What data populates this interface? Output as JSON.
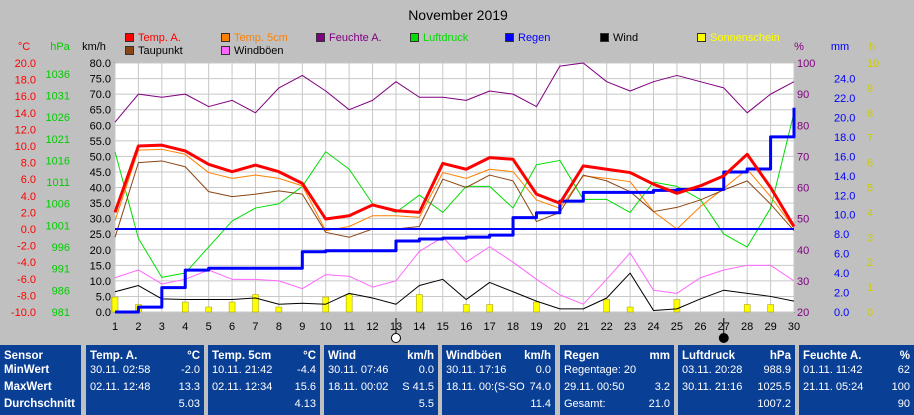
{
  "chart_data": {
    "type": "line",
    "title": "November 2019",
    "x": [
      1,
      2,
      3,
      4,
      5,
      6,
      7,
      8,
      9,
      10,
      11,
      12,
      13,
      14,
      15,
      16,
      17,
      18,
      19,
      20,
      21,
      22,
      23,
      24,
      25,
      26,
      27,
      28,
      29,
      30
    ],
    "axes": {
      "temp": {
        "unit": "°C",
        "range": [
          -10,
          20
        ],
        "ticks": [
          "20.0",
          "18.0",
          "16.0",
          "14.0",
          "12.0",
          "10.0",
          "8.0",
          "6.0",
          "4.0",
          "2.0",
          "0.0",
          "-2.0",
          "-4.0",
          "-6.0",
          "-8.0",
          "-10.0"
        ],
        "color": "#ff0000"
      },
      "pressure": {
        "unit": "hPa",
        "range": [
          981,
          1038.5
        ],
        "ticks": [
          "1036",
          "1031",
          "1026",
          "1021",
          "1016",
          "1011",
          "1006",
          "1001",
          "996",
          "991",
          "986",
          "981"
        ],
        "color": "#00dd00"
      },
      "wind": {
        "unit": "km/h",
        "range": [
          0,
          80
        ],
        "ticks": [
          "80.0",
          "75.0",
          "70.0",
          "65.0",
          "60.0",
          "55.0",
          "50.0",
          "45.0",
          "40.0",
          "35.0",
          "30.0",
          "25.0",
          "20.0",
          "15.0",
          "10.0",
          "5.0",
          "0.0"
        ],
        "color": "#000000"
      },
      "humidity": {
        "unit": "%",
        "range": [
          20,
          100
        ],
        "ticks": [
          "100",
          "90",
          "80",
          "70",
          "60",
          "50",
          "40",
          "30",
          "20"
        ],
        "color": "#800080"
      },
      "rain": {
        "unit": "mm",
        "range": [
          0,
          25.6
        ],
        "ticks": [
          "24.0",
          "22.0",
          "20.0",
          "18.0",
          "16.0",
          "14.0",
          "12.0",
          "10.0",
          "8.0",
          "6.0",
          "4.0",
          "2.0",
          "0.0"
        ],
        "color": "#0000ff"
      },
      "sun": {
        "unit": "h",
        "range": [
          0,
          10
        ],
        "ticks": [
          "10",
          "9",
          "8",
          "7",
          "6",
          "5",
          "4",
          "3",
          "2",
          "1",
          "0"
        ],
        "color": "#ffff00"
      }
    },
    "series": [
      {
        "name": "Temp. A.",
        "key": "temp_a",
        "axis": "temp",
        "color": "#ff0000",
        "width": 3,
        "values": [
          2.0,
          10.0,
          10.1,
          9.4,
          7.8,
          6.9,
          7.7,
          6.9,
          5.5,
          1.2,
          1.6,
          2.9,
          2.2,
          2.0,
          7.9,
          7.2,
          8.6,
          8.4,
          4.2,
          3.1,
          7.6,
          7.2,
          6.8,
          5.4,
          4.3,
          5.2,
          6.4,
          9.0,
          5.0,
          0.3
        ]
      },
      {
        "name": "Temp. 5cm",
        "key": "temp_5cm",
        "axis": "temp",
        "color": "#ff8000",
        "width": 1,
        "values": [
          1.0,
          9.5,
          9.6,
          9.0,
          6.8,
          6.1,
          6.5,
          6.1,
          5.2,
          -0.2,
          0.3,
          1.6,
          1.6,
          1.4,
          6.8,
          6.1,
          7.2,
          6.9,
          3.5,
          2.5,
          6.4,
          6.1,
          5.7,
          2.1,
          0.0,
          2.7,
          4.9,
          7.2,
          3.9,
          0.1
        ]
      },
      {
        "name": "Feuchte A.",
        "key": "humidity",
        "axis": "humidity",
        "color": "#800080",
        "width": 1,
        "values": [
          81,
          90,
          89,
          90,
          86,
          88,
          84,
          92,
          96,
          91,
          85,
          88,
          94,
          89,
          89,
          88,
          91,
          90,
          86,
          99,
          100,
          94,
          91,
          94,
          96,
          94,
          92,
          84,
          90,
          94
        ]
      },
      {
        "name": "Luftdruck",
        "key": "pressure",
        "axis": "pressure",
        "color": "#00dd00",
        "width": 1,
        "values": [
          1018,
          998,
          989,
          990,
          996,
          1002,
          1005,
          1006,
          1010,
          1018,
          1014,
          1006,
          1004,
          1008,
          1004,
          1010,
          1010,
          1005,
          1015,
          1016,
          1007,
          1007,
          1004,
          1011,
          1010,
          1007,
          999,
          996,
          1005,
          1027
        ]
      },
      {
        "name": "Regen",
        "key": "rain",
        "axis": "rain",
        "color": "#0000ff",
        "width": 3,
        "values": [
          0.0,
          0.5,
          2.5,
          4.3,
          4.5,
          4.5,
          4.5,
          4.5,
          6.2,
          6.3,
          6.3,
          6.3,
          7.3,
          7.5,
          7.6,
          7.7,
          7.9,
          9.7,
          10.2,
          11.4,
          12.3,
          12.3,
          12.3,
          12.5,
          12.6,
          12.6,
          14.4,
          14.7,
          18.0,
          21.0
        ]
      },
      {
        "name": "Wind",
        "key": "wind",
        "axis": "wind",
        "color": "#000000",
        "width": 1,
        "values": [
          6.5,
          8.5,
          4.2,
          4.0,
          4.0,
          4.0,
          4.5,
          2.5,
          2.8,
          2.5,
          6.0,
          4.5,
          2.5,
          8.5,
          10.5,
          4.0,
          9.5,
          6.5,
          3.5,
          1.0,
          1.0,
          4.5,
          12.5,
          0.5,
          1.0,
          4.2,
          7.0,
          6.0,
          5.0,
          3.5
        ]
      },
      {
        "name": "Taupunkt",
        "key": "dewpoint",
        "axis": "temp",
        "color": "#8b4513",
        "width": 1,
        "values": [
          -1.0,
          8.0,
          8.2,
          7.5,
          4.5,
          3.9,
          4.2,
          4.6,
          4.2,
          -0.4,
          -1.0,
          0.0,
          0.0,
          0.3,
          6.0,
          5.0,
          6.5,
          5.8,
          0.9,
          2.0,
          6.5,
          5.8,
          4.5,
          2.1,
          2.6,
          3.5,
          4.7,
          5.8,
          3.0,
          -0.2
        ]
      },
      {
        "name": "Windböen",
        "key": "gusts",
        "axis": "wind",
        "color": "#ff66ff",
        "width": 1,
        "values": [
          11.0,
          13.5,
          9.0,
          10.5,
          13.5,
          10.5,
          10.5,
          10.0,
          7.5,
          12.0,
          11.5,
          8.0,
          10.0,
          19.5,
          24.0,
          16.0,
          21.0,
          16.0,
          10.5,
          5.5,
          2.5,
          10.5,
          19.0,
          7.0,
          6.0,
          11.0,
          13.5,
          15.0,
          15.0,
          10.0
        ]
      },
      {
        "name": "Sonnenschein",
        "key": "sun",
        "axis": "sun",
        "color": "#ffff00",
        "type": "bar",
        "values": [
          0.6,
          0.3,
          0.0,
          0.4,
          0.2,
          0.4,
          0.7,
          0.2,
          0.0,
          0.6,
          0.7,
          0.0,
          0.0,
          0.7,
          0.0,
          0.3,
          0.3,
          0.0,
          0.4,
          0.0,
          0.0,
          0.5,
          0.2,
          0.0,
          0.5,
          0.0,
          0.0,
          0.3,
          0.3,
          0.0
        ]
      }
    ],
    "moon_markers": [
      {
        "day": 13,
        "phase": "full"
      },
      {
        "day": 27,
        "phase": "new"
      }
    ]
  },
  "stats": {
    "sensor": {
      "title": "Sensor",
      "min": "MinWert",
      "max": "MaxWert",
      "avg": "Durchschnitt"
    },
    "temp_a": {
      "title": "Temp. A.",
      "unit": "°C",
      "min_time": "30.11.  02:58",
      "min_val": "-2.0",
      "max_time": "02.11.  12:48",
      "max_val": "13.3",
      "avg": "5.03"
    },
    "temp_5cm": {
      "title": "Temp. 5cm",
      "unit": "°C",
      "min_time": "10.11.  21:42",
      "min_val": "-4.4",
      "max_time": "02.11.  12:34",
      "max_val": "15.6",
      "avg": "4.13"
    },
    "wind": {
      "title": "Wind",
      "unit": "km/h",
      "min_time": "30.11.  07:46",
      "min_val": "0.0",
      "max_time": "18.11.  00:02",
      "max_val": "S 41.5",
      "avg": "5.5"
    },
    "gusts": {
      "title": "Windböen",
      "unit": "km/h",
      "min_time": "30.11.  17:16",
      "min_val": "0.0",
      "max_time": "18.11.  00:(S-SO",
      "max_val": "74.0",
      "avg": "11.4"
    },
    "rain": {
      "title": "Regen",
      "unit": "mm",
      "row1_label": "Regentage: 20",
      "row2_label": "29.11.  00:50",
      "row2_val": "3.2",
      "row3_label": "Gesamt:",
      "row3_val": "21.0"
    },
    "pressure": {
      "title": "Luftdruck",
      "unit": "hPa",
      "min_time": "03.11.  20:28",
      "min_val": "988.9",
      "max_time": "30.11.  21:16",
      "max_val": "1025.5",
      "avg": "1007.2"
    },
    "humidity": {
      "title": "Feuchte A.",
      "unit": "%",
      "min_time": "01.11.  11:42",
      "min_val": "62",
      "max_time": "21.11.  05:24",
      "max_val": "100",
      "avg": "90"
    }
  }
}
